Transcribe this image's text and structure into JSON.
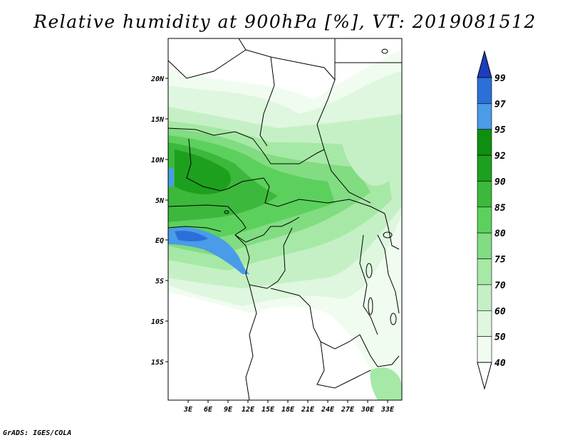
{
  "title": "Relative humidity at 900hPa [%], VT: 2019081512",
  "footer": "GrADS: IGES/COLA",
  "map": {
    "lat_labels": [
      "20N",
      "15N",
      "10N",
      "5N",
      "EQ",
      "5S",
      "10S",
      "15S"
    ],
    "lon_labels": [
      "3E",
      "6E",
      "9E",
      "12E",
      "15E",
      "18E",
      "21E",
      "24E",
      "27E",
      "30E",
      "33E"
    ]
  },
  "colorbar": {
    "levels": [
      "99",
      "97",
      "95",
      "92",
      "90",
      "85",
      "80",
      "75",
      "70",
      "60",
      "50",
      "40"
    ],
    "colors": [
      "#1e3cbe",
      "#2c6fd8",
      "#4a9be8",
      "#0f8f0f",
      "#1da01d",
      "#3cb83c",
      "#5cd05c",
      "#82dc82",
      "#a6e8a6",
      "#c5f0c5",
      "#def7de",
      "#f0fcf0"
    ]
  }
}
